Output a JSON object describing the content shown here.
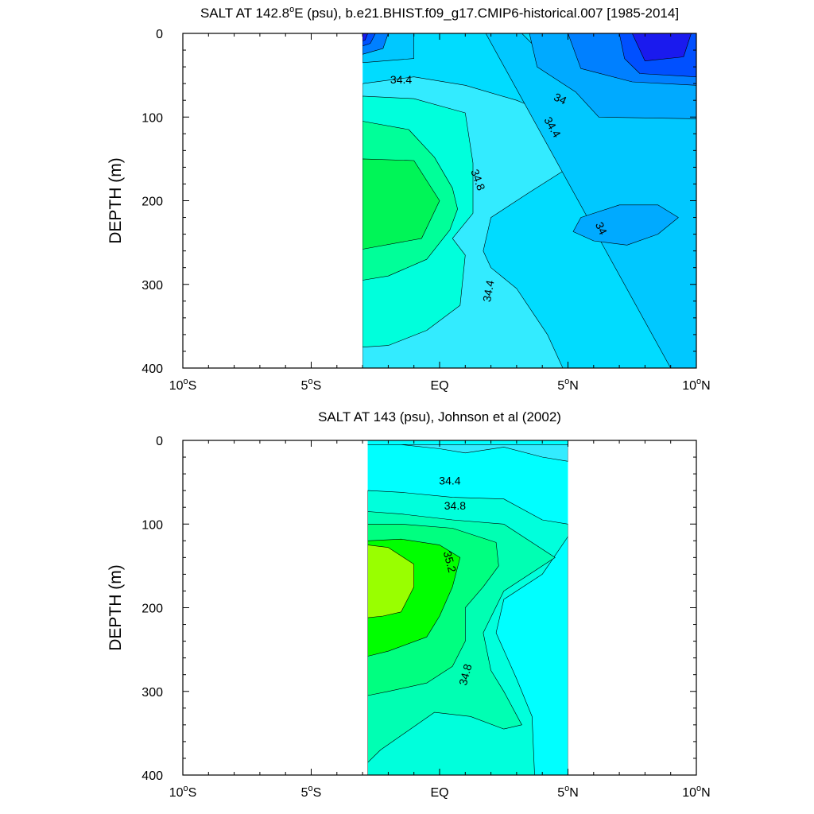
{
  "chart_data": [
    {
      "type": "contour",
      "title": "SALT AT 142.8°E (psu), b.e21.BHIST.f09_g17.CMIP6-historical.007 [1985-2014]",
      "title_parts": [
        "SALT AT 142.8",
        "o",
        "E (psu), b.e21.BHIST.f09_g17.CMIP6-historical.007 [1985-2014]"
      ],
      "ylabel": "DEPTH (m)",
      "xlabel": "",
      "xlim": [
        -10,
        10
      ],
      "ylim": [
        0,
        400
      ],
      "y_inverted": true,
      "x_ticks": [
        {
          "value": -10,
          "label": "10",
          "sup": "o",
          "suffix": "S"
        },
        {
          "value": -5,
          "label": "5",
          "sup": "o",
          "suffix": "S"
        },
        {
          "value": 0,
          "label": "EQ",
          "sup": "",
          "suffix": ""
        },
        {
          "value": 5,
          "label": "5",
          "sup": "o",
          "suffix": "N"
        },
        {
          "value": 10,
          "label": "10",
          "sup": "o",
          "suffix": "N"
        }
      ],
      "y_ticks": [
        {
          "value": 0,
          "label": "0"
        },
        {
          "value": 100,
          "label": "100"
        },
        {
          "value": 200,
          "label": "200"
        },
        {
          "value": 300,
          "label": "300"
        },
        {
          "value": 400,
          "label": "400"
        }
      ],
      "data_extent": {
        "lon_min": -3,
        "lon_max": 10
      },
      "background_color": "#00dcff",
      "regions": [
        {
          "name": "salt-34.4-34.6",
          "color": "#33ebff",
          "points": [
            [
              -3,
              60
            ],
            [
              -1,
              52
            ],
            [
              1,
              62
            ],
            [
              3,
              80
            ],
            [
              5,
              105
            ],
            [
              6,
              123
            ],
            [
              5.3,
              155
            ],
            [
              3.5,
              190
            ],
            [
              2,
              220
            ],
            [
              1.7,
              260
            ],
            [
              2,
              280
            ],
            [
              3,
              305
            ],
            [
              4.2,
              360
            ],
            [
              4.8,
              400
            ],
            [
              -3,
              400
            ]
          ]
        },
        {
          "name": "salt-34.6-34.8",
          "color": "#00ffdc",
          "points": [
            [
              -3,
              75
            ],
            [
              -1,
              78
            ],
            [
              1,
              95
            ],
            [
              1.3,
              155
            ],
            [
              1.3,
              215
            ],
            [
              0.5,
              245
            ],
            [
              1,
              265
            ],
            [
              0.8,
              325
            ],
            [
              -0.5,
              355
            ],
            [
              -2,
              373
            ],
            [
              -3,
              375
            ]
          ]
        },
        {
          "name": "salt-34.8-35.0",
          "color": "#00ff99",
          "points": [
            [
              -3,
              105
            ],
            [
              -1.2,
              115
            ],
            [
              -0.2,
              148
            ],
            [
              0.5,
              185
            ],
            [
              0.7,
              210
            ],
            [
              0.4,
              235
            ],
            [
              -0.5,
              270
            ],
            [
              -2,
              290
            ],
            [
              -3,
              295
            ]
          ]
        },
        {
          "name": "salt-35.0-35.2",
          "color": "#00f557",
          "points": [
            [
              -3,
              150
            ],
            [
              -1,
              152
            ],
            [
              0,
              200
            ],
            [
              -0.7,
              245
            ],
            [
              -3,
              258
            ]
          ]
        },
        {
          "name": "salt-34.2-34.4",
          "color": "#00c8ff",
          "points": [
            [
              1.8,
              0
            ],
            [
              3.2,
              0
            ],
            [
              4.5,
              40
            ],
            [
              6.5,
              68
            ],
            [
              8.5,
              72
            ],
            [
              10,
              74
            ],
            [
              10,
              405
            ],
            [
              9,
              400
            ]
          ]
        },
        {
          "name": "salt-34.2-34.4-b",
          "color": "#00c8ff",
          "points": [
            [
              -3,
              0
            ],
            [
              -1,
              0
            ],
            [
              -1,
              30
            ],
            [
              -3,
              35
            ]
          ]
        },
        {
          "name": "salt-34.0-34.2",
          "color": "#00aaff",
          "points": [
            [
              3.5,
              0
            ],
            [
              10,
              0
            ],
            [
              10,
              102
            ],
            [
              6.2,
              100
            ],
            [
              5.3,
              70
            ],
            [
              3.8,
              40
            ]
          ]
        },
        {
          "name": "salt-34.0-34.2-eddy",
          "color": "#00aaff",
          "points": [
            [
              5.5,
              220
            ],
            [
              7,
              205
            ],
            [
              8.5,
              205
            ],
            [
              9.3,
              220
            ],
            [
              8.5,
              240
            ],
            [
              7.3,
              253
            ],
            [
              6,
              248
            ],
            [
              5.2,
              237
            ]
          ]
        },
        {
          "name": "salt-33.8-34.0",
          "color": "#0080ff",
          "points": [
            [
              5,
              0
            ],
            [
              10,
              0
            ],
            [
              10,
              62
            ],
            [
              7.5,
              58
            ],
            [
              5.5,
              42
            ]
          ]
        },
        {
          "name": "salt-33.6-33.8",
          "color": "#0050ff",
          "points": [
            [
              7,
              0
            ],
            [
              10,
              0
            ],
            [
              10,
              52
            ],
            [
              7.8,
              48
            ],
            [
              7.2,
              30
            ]
          ]
        },
        {
          "name": "salt-below-33.6",
          "color": "#1a1aee",
          "points": [
            [
              7.5,
              0
            ],
            [
              9.8,
              0
            ],
            [
              9.5,
              28
            ],
            [
              8,
              33
            ]
          ]
        },
        {
          "name": "salt-nw-corner-1",
          "color": "#0080ff",
          "points": [
            [
              -3,
              0
            ],
            [
              -2,
              0
            ],
            [
              -2.2,
              18
            ],
            [
              -3,
              25
            ]
          ]
        },
        {
          "name": "salt-nw-corner-2",
          "color": "#0050ff",
          "points": [
            [
              -3,
              0
            ],
            [
              -2.5,
              0
            ],
            [
              -2.7,
              12
            ],
            [
              -3,
              15
            ]
          ]
        },
        {
          "name": "salt-nw-corner-3",
          "color": "#1a1aee",
          "points": [
            [
              -3,
              0
            ],
            [
              -2.8,
              0
            ],
            [
              -2.9,
              8
            ],
            [
              -3,
              9
            ]
          ]
        }
      ],
      "contour_labels": [
        {
          "text": "34.4",
          "x": -1.5,
          "y": 55,
          "rotate": 0
        },
        {
          "text": "34",
          "x": 4.7,
          "y": 78,
          "rotate": 25
        },
        {
          "text": "34.4",
          "x": 4.4,
          "y": 112,
          "rotate": 60
        },
        {
          "text": "34.8",
          "x": 1.5,
          "y": 175,
          "rotate": 70
        },
        {
          "text": "34",
          "x": 6.3,
          "y": 233,
          "rotate": 65
        },
        {
          "text": "34.4",
          "x": 1.9,
          "y": 308,
          "rotate": -80
        }
      ]
    },
    {
      "type": "contour",
      "title": "SALT AT 143 (psu), Johnson et al (2002)",
      "title_parts": [
        "SALT AT 143 (psu), Johnson et al (2002)",
        "",
        ""
      ],
      "ylabel": "DEPTH (m)",
      "xlabel": "",
      "xlim": [
        -10,
        10
      ],
      "ylim": [
        0,
        400
      ],
      "y_inverted": true,
      "x_ticks": [
        {
          "value": -10,
          "label": "10",
          "sup": "o",
          "suffix": "S"
        },
        {
          "value": -5,
          "label": "5",
          "sup": "o",
          "suffix": "S"
        },
        {
          "value": 0,
          "label": "EQ",
          "sup": "",
          "suffix": ""
        },
        {
          "value": 5,
          "label": "5",
          "sup": "o",
          "suffix": "N"
        },
        {
          "value": 10,
          "label": "10",
          "sup": "o",
          "suffix": "N"
        }
      ],
      "y_ticks": [
        {
          "value": 0,
          "label": "0"
        },
        {
          "value": 100,
          "label": "100"
        },
        {
          "value": 200,
          "label": "200"
        },
        {
          "value": 300,
          "label": "300"
        },
        {
          "value": 400,
          "label": "400"
        }
      ],
      "data_extent": {
        "lon_min": -2.8,
        "lon_max": 5
      },
      "background_color": "#00ffff",
      "regions": [
        {
          "name": "salt-34.2-34.4",
          "color": "#33ebff",
          "points": [
            [
              -2.8,
              5
            ],
            [
              -1.5,
              5
            ],
            [
              0,
              10
            ],
            [
              1,
              15
            ],
            [
              2.5,
              8
            ],
            [
              4,
              20
            ],
            [
              5,
              25
            ],
            [
              5,
              5
            ],
            [
              -2.8,
              5
            ]
          ]
        },
        {
          "name": "salt-34.6-34.8-upper",
          "color": "#00ffdc",
          "points": [
            [
              -2.8,
              60
            ],
            [
              -1.5,
              62
            ],
            [
              0.5,
              68
            ],
            [
              2.5,
              70
            ],
            [
              4,
              95
            ],
            [
              5,
              100
            ],
            [
              5,
              400
            ],
            [
              -2.8,
              400
            ]
          ]
        },
        {
          "name": "salt-34.6-34.8-cut",
          "color": "#00ffff",
          "points": [
            [
              5,
              115
            ],
            [
              4,
              160
            ],
            [
              2.5,
              190
            ],
            [
              2.2,
              230
            ],
            [
              3,
              285
            ],
            [
              3.6,
              330
            ],
            [
              3.7,
              400
            ],
            [
              5,
              400
            ]
          ]
        },
        {
          "name": "salt-34.8-35.0",
          "color": "#00ffb3",
          "points": [
            [
              -2.8,
              85
            ],
            [
              -1.5,
              88
            ],
            [
              0.5,
              95
            ],
            [
              2.5,
              100
            ],
            [
              4.5,
              140
            ],
            [
              4,
              150
            ],
            [
              2.5,
              180
            ],
            [
              1.7,
              230
            ],
            [
              2,
              275
            ],
            [
              2.5,
              300
            ],
            [
              3.2,
              340
            ],
            [
              2.5,
              345
            ],
            [
              1.2,
              330
            ],
            [
              -0.2,
              325
            ],
            [
              -2.3,
              370
            ],
            [
              -2.8,
              385
            ]
          ]
        },
        {
          "name": "salt-35.0-35.2",
          "color": "#00ff80",
          "points": [
            [
              -2.8,
              100
            ],
            [
              -1.5,
              100
            ],
            [
              0.5,
              105
            ],
            [
              2.2,
              122
            ],
            [
              2.3,
              150
            ],
            [
              1.7,
              175
            ],
            [
              1,
              200
            ],
            [
              1,
              240
            ],
            [
              0.5,
              270
            ],
            [
              -0.5,
              290
            ],
            [
              -2,
              300
            ],
            [
              -2.8,
              305
            ]
          ]
        },
        {
          "name": "salt-35.2-35.4",
          "color": "#00ff00",
          "points": [
            [
              -2.8,
              120
            ],
            [
              -1.5,
              118
            ],
            [
              0,
              125
            ],
            [
              0.8,
              140
            ],
            [
              0.5,
              175
            ],
            [
              0,
              210
            ],
            [
              -0.5,
              235
            ],
            [
              -2,
              252
            ],
            [
              -2.8,
              258
            ]
          ]
        },
        {
          "name": "salt-above-35.4",
          "color": "#99ff00",
          "points": [
            [
              -2.8,
              125
            ],
            [
              -2,
              128
            ],
            [
              -1,
              148
            ],
            [
              -1,
              175
            ],
            [
              -1.5,
              205
            ],
            [
              -2.2,
              210
            ],
            [
              -2.8,
              212
            ]
          ]
        }
      ],
      "contour_labels": [
        {
          "text": "34.4",
          "x": 0.4,
          "y": 48,
          "rotate": 0
        },
        {
          "text": "34.8",
          "x": 0.6,
          "y": 78,
          "rotate": 0
        },
        {
          "text": "35.2",
          "x": 0.4,
          "y": 145,
          "rotate": 75
        },
        {
          "text": "34.8",
          "x": 1.0,
          "y": 280,
          "rotate": -75
        }
      ]
    }
  ]
}
